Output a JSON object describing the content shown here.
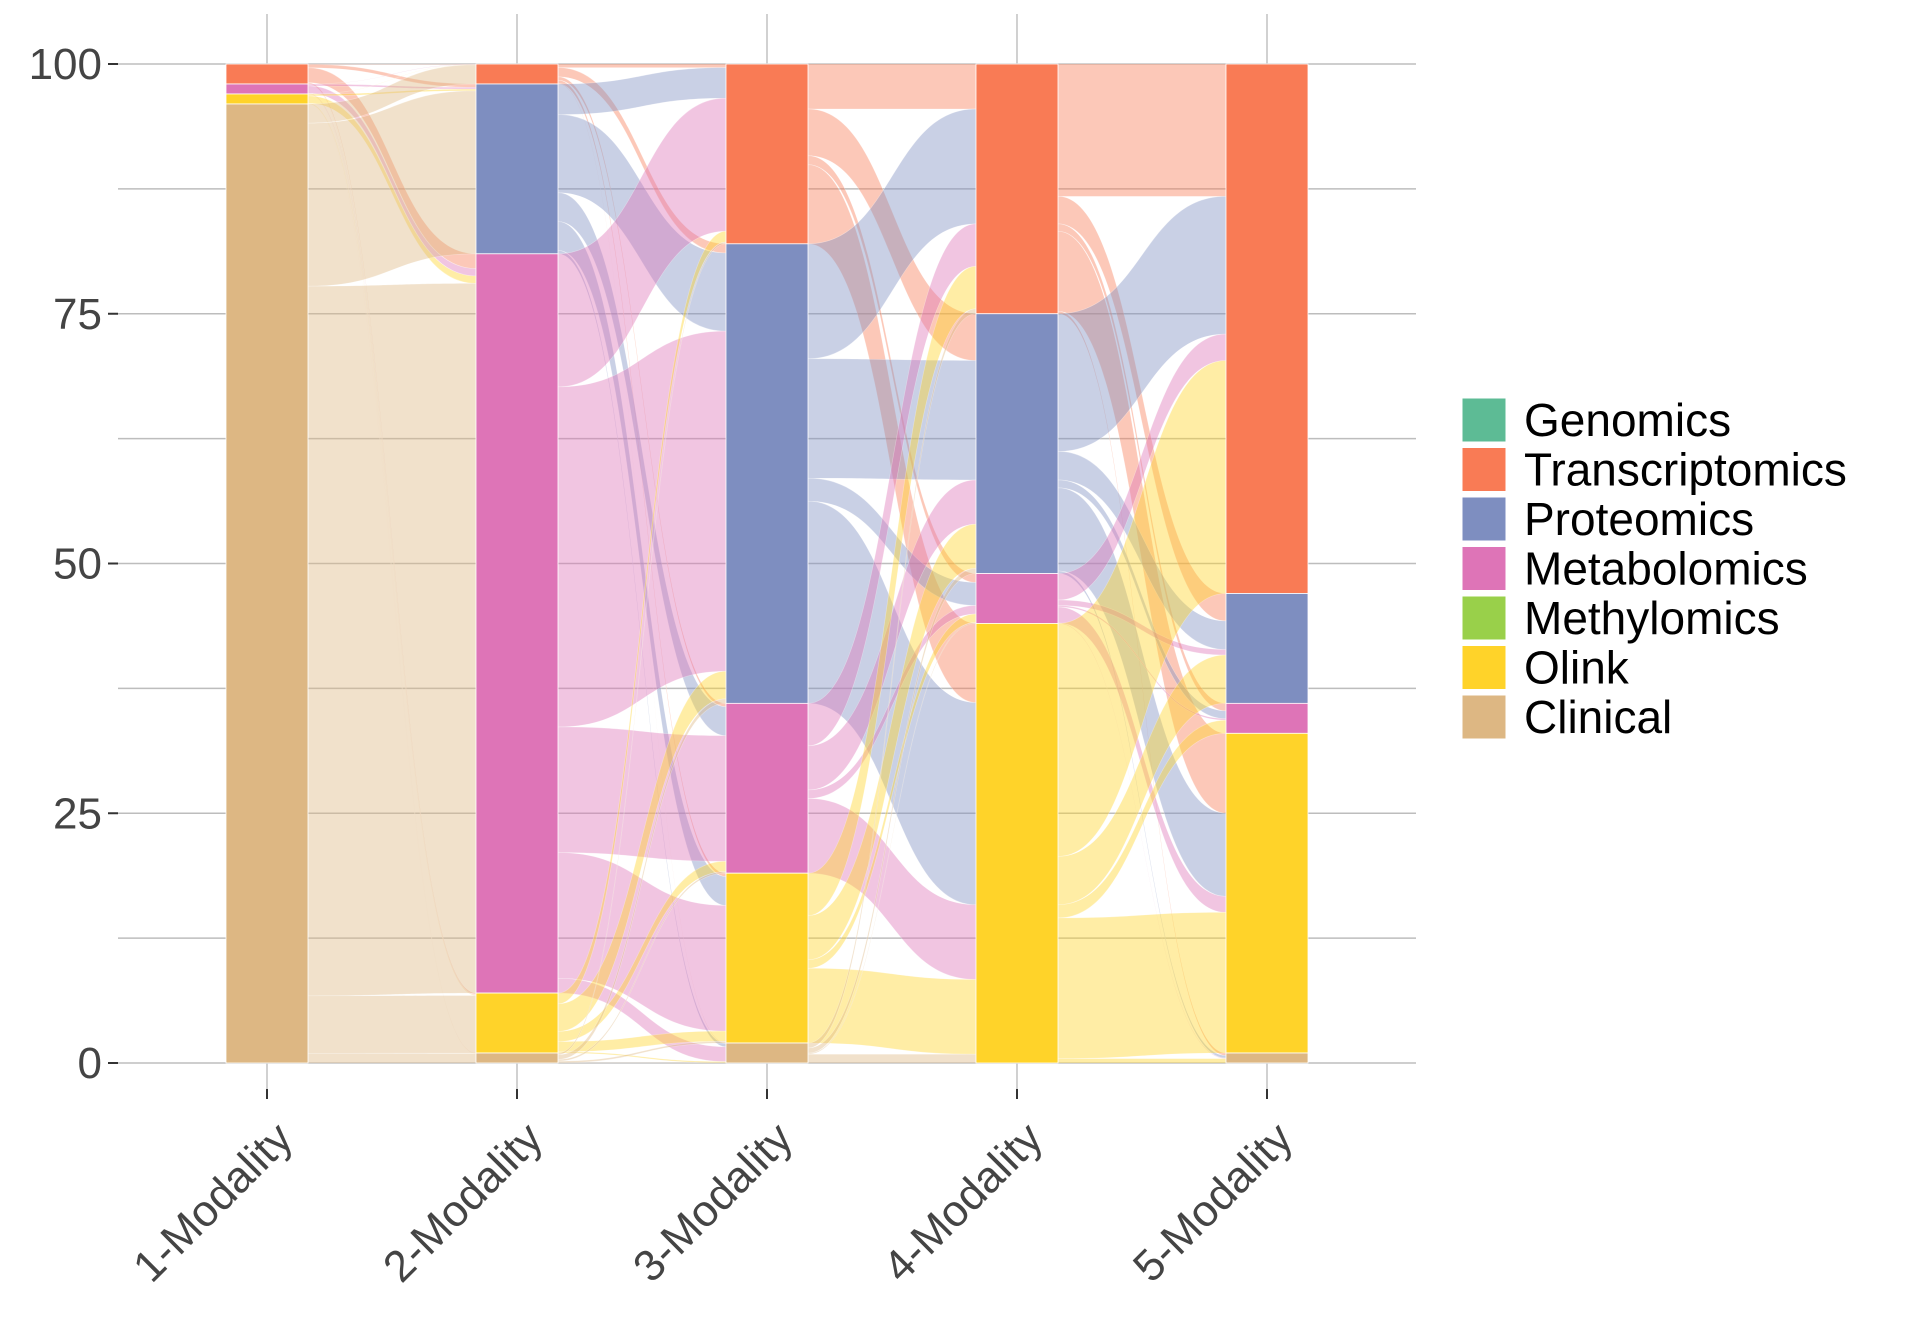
{
  "chart_data": {
    "type": "alluvial",
    "categories": [
      "1-Modality",
      "2-Modality",
      "3-Modality",
      "4-Modality",
      "5-Modality"
    ],
    "ylim": [
      0,
      100
    ],
    "yticks": [
      0,
      25,
      50,
      75,
      100
    ],
    "grid": true,
    "legend_position": "right",
    "series": [
      {
        "name": "Genomics",
        "color": "#5DBB95",
        "values": [
          0,
          0,
          0,
          0,
          0
        ]
      },
      {
        "name": "Transcriptomics",
        "color": "#F97B55",
        "values": [
          2,
          2,
          18,
          25,
          53
        ]
      },
      {
        "name": "Proteomics",
        "color": "#7E8EC0",
        "values": [
          0,
          17,
          46,
          26,
          11
        ]
      },
      {
        "name": "Metabolomics",
        "color": "#DE74B7",
        "values": [
          1,
          74,
          17,
          5,
          3
        ]
      },
      {
        "name": "Methylomics",
        "color": "#99D04A",
        "values": [
          0,
          0,
          0,
          0,
          0
        ]
      },
      {
        "name": "Olink",
        "color": "#FFD329",
        "values": [
          1,
          6,
          17,
          44,
          32
        ]
      },
      {
        "name": "Clinical",
        "color": "#DDB783",
        "values": [
          96,
          1,
          2,
          0,
          1
        ]
      }
    ]
  }
}
